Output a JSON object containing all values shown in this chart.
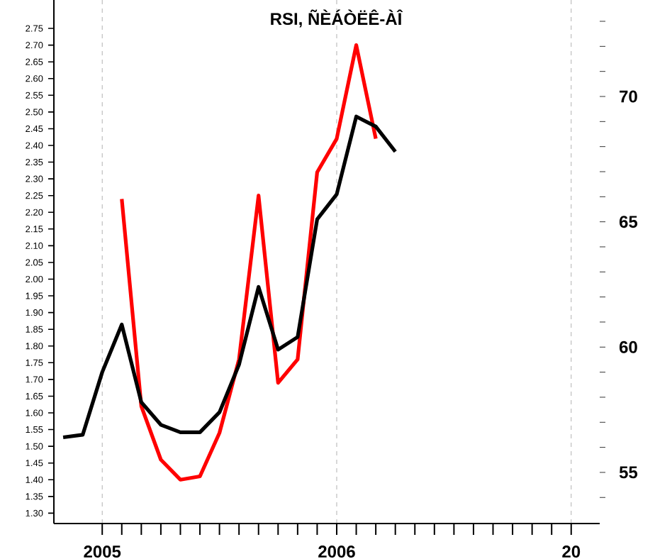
{
  "chart_data": {
    "type": "line",
    "title": "RSI, ÑÈÁÒËÊ-ÀÎ",
    "xlim": [
      "2004-10-17",
      "2007-02-15"
    ],
    "xticks": [
      {
        "value": "2005-01",
        "label": "2005"
      },
      {
        "value": "2006-01",
        "label": "2006"
      },
      {
        "value": "2007-01",
        "label": "20"
      }
    ],
    "ylim": [
      1.269,
      2.835
    ],
    "yticks": [
      {
        "value": 1.3,
        "label": "1.30"
      },
      {
        "value": 1.35,
        "label": "1.35"
      },
      {
        "value": 1.4,
        "label": "1.40"
      },
      {
        "value": 1.45,
        "label": "1.45"
      },
      {
        "value": 1.5,
        "label": "1.50"
      },
      {
        "value": 1.55,
        "label": "1.55"
      },
      {
        "value": 1.6,
        "label": "1.60"
      },
      {
        "value": 1.65,
        "label": "1.65"
      },
      {
        "value": 1.7,
        "label": "1.70"
      },
      {
        "value": 1.75,
        "label": "1.75"
      },
      {
        "value": 1.8,
        "label": "1.80"
      },
      {
        "value": 1.85,
        "label": "1.85"
      },
      {
        "value": 1.9,
        "label": "1.90"
      },
      {
        "value": 1.95,
        "label": "1.95"
      },
      {
        "value": 2.0,
        "label": "2.00"
      },
      {
        "value": 2.05,
        "label": "2.05"
      },
      {
        "value": 2.1,
        "label": "2.10"
      },
      {
        "value": 2.15,
        "label": "2.15"
      },
      {
        "value": 2.2,
        "label": "2.20"
      },
      {
        "value": 2.25,
        "label": "2.25"
      },
      {
        "value": 2.3,
        "label": "2.30"
      },
      {
        "value": 2.35,
        "label": "2.35"
      },
      {
        "value": 2.4,
        "label": "2.40"
      },
      {
        "value": 2.45,
        "label": "2.45"
      },
      {
        "value": 2.5,
        "label": "2.50"
      },
      {
        "value": 2.55,
        "label": "2.55"
      },
      {
        "value": 2.6,
        "label": "2.60"
      },
      {
        "value": 2.65,
        "label": "2.65"
      },
      {
        "value": 2.7,
        "label": "2.70"
      },
      {
        "value": 2.75,
        "label": "2.75"
      }
    ],
    "y2lim": [
      52.96,
      73.85
    ],
    "y2ticks": [
      {
        "value": 54,
        "label": null
      },
      55,
      {
        "value": 56,
        "label": null
      },
      {
        "value": 57,
        "label": null
      },
      {
        "value": 58,
        "label": null
      },
      {
        "value": 59,
        "label": null
      },
      60,
      {
        "value": 61,
        "label": null
      },
      {
        "value": 62,
        "label": null
      },
      {
        "value": 63,
        "label": null
      },
      {
        "value": 64,
        "label": null
      },
      65,
      {
        "value": 66,
        "label": null
      },
      {
        "value": 67,
        "label": null
      },
      {
        "value": 68,
        "label": null
      },
      {
        "value": 69,
        "label": null
      },
      70,
      {
        "value": 71,
        "label": null
      },
      {
        "value": 72,
        "label": null
      },
      {
        "value": 73,
        "label": null
      }
    ],
    "grid": "x",
    "line_style": "solid",
    "series": [
      {
        "color": "#ff0000",
        "x": [
          "2005-02",
          "2005-03",
          "2005-04",
          "2005-05",
          "2005-06",
          "2005-07",
          "2005-08",
          "2005-09",
          "2005-10",
          "2005-11",
          "2005-12",
          "2006-01",
          "2006-02",
          "2006-03"
        ],
        "values": [
          2.24,
          1.62,
          1.46,
          1.4,
          1.41,
          1.54,
          1.76,
          2.25,
          1.69,
          1.76,
          2.32,
          2.42,
          2.7,
          2.42
        ]
      },
      {
        "color": "#000000",
        "axis": "y2",
        "x": [
          "2004-11",
          "2004-12",
          "2005-01",
          "2005-02",
          "2005-03",
          "2005-04",
          "2005-05",
          "2005-06",
          "2005-07",
          "2005-08",
          "2005-09",
          "2005-10",
          "2005-11",
          "2005-12",
          "2006-01",
          "2006-02",
          "2006-03",
          "2006-04"
        ],
        "values": [
          56.4,
          56.5,
          59.0,
          60.9,
          57.8,
          56.9,
          56.6,
          56.6,
          57.4,
          59.3,
          62.4,
          59.9,
          60.4,
          65.1,
          66.1,
          69.2,
          68.8,
          67.8
        ]
      }
    ]
  }
}
